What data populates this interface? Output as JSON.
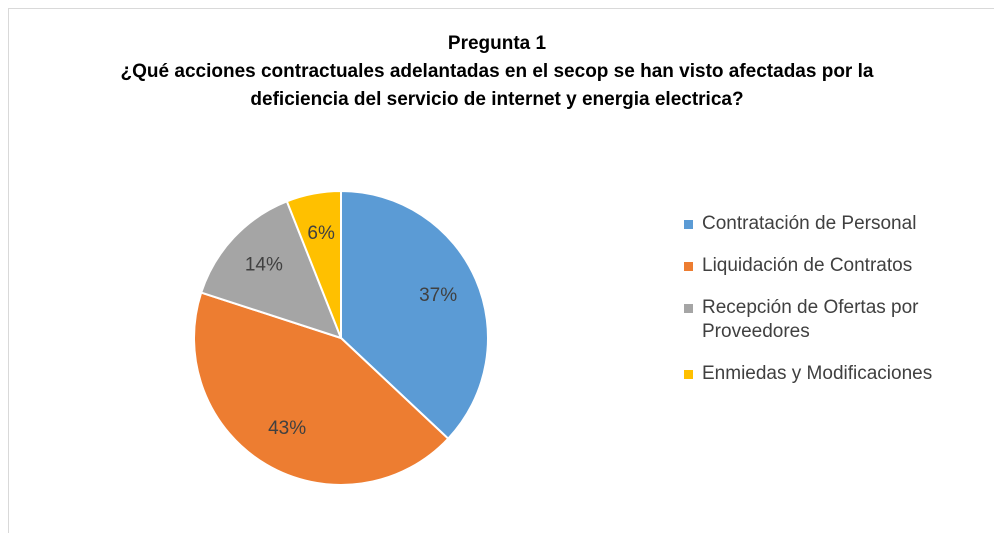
{
  "chart_data": {
    "type": "pie",
    "title": "Pregunta 1",
    "subtitle": "¿Qué acciones contractuales adelantadas en el secop se han visto afectadas por la deficiencia del servicio de internet y energia electrica?",
    "categories": [
      "Contratación de Personal",
      "Liquidación de Contratos",
      "Recepción de Ofertas por Proveedores",
      "Enmiedas y Modificaciones"
    ],
    "values": [
      37,
      43,
      14,
      6
    ],
    "value_labels": [
      "37%",
      "43%",
      "14%",
      "6%"
    ],
    "colors": [
      "#5b9bd5",
      "#ed7d31",
      "#a5a5a5",
      "#ffc000"
    ],
    "legend": "right"
  }
}
